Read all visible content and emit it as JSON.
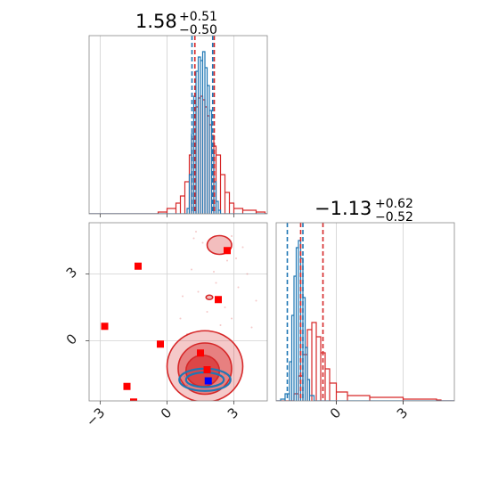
{
  "chart_data": {
    "type": "corner",
    "colors": {
      "blue": "#1f77b4",
      "red": "#d62728",
      "marker_red": "#ff0000",
      "marker_blue": "#0000ff"
    },
    "parameters": [
      {
        "index": 0,
        "title": {
          "median": "1.58",
          "plus": "+0.51",
          "minus": "−0.50"
        },
        "range": [
          -3.5,
          4.5
        ],
        "ticks": [
          -3,
          0,
          3
        ],
        "tick_labels": [
          "−3",
          "0",
          "3"
        ]
      },
      {
        "index": 1,
        "title": {
          "median": "−1.13",
          "plus": "+0.62",
          "minus": "−0.52"
        },
        "range": [
          -2.7,
          5.3
        ],
        "ticks": [
          0,
          3
        ],
        "tick_labels": [
          "0",
          "3"
        ]
      }
    ],
    "grid": true,
    "marginals": [
      {
        "param": 0,
        "blue_hist": [
          [
            0.9,
            0.03
          ],
          [
            1.0,
            0.22
          ],
          [
            1.1,
            0.45
          ],
          [
            1.2,
            0.66
          ],
          [
            1.3,
            0.8
          ],
          [
            1.4,
            0.88
          ],
          [
            1.5,
            0.86
          ],
          [
            1.6,
            0.91
          ],
          [
            1.7,
            0.82
          ],
          [
            1.8,
            0.72
          ],
          [
            1.9,
            0.58
          ],
          [
            2.0,
            0.36
          ],
          [
            2.1,
            0.18
          ],
          [
            2.2,
            0.07
          ],
          [
            2.3,
            0.02
          ]
        ],
        "red_hist": [
          [
            -0.4,
            0.01
          ],
          [
            0.0,
            0.03
          ],
          [
            0.4,
            0.06
          ],
          [
            0.6,
            0.1
          ],
          [
            0.8,
            0.18
          ],
          [
            1.0,
            0.33
          ],
          [
            1.1,
            0.42
          ],
          [
            1.2,
            0.5
          ],
          [
            1.3,
            0.6
          ],
          [
            1.4,
            0.65
          ],
          [
            1.5,
            0.66
          ],
          [
            1.6,
            0.64
          ],
          [
            1.7,
            0.6
          ],
          [
            1.8,
            0.55
          ],
          [
            1.9,
            0.5
          ],
          [
            2.0,
            0.44
          ],
          [
            2.1,
            0.38
          ],
          [
            2.2,
            0.33
          ],
          [
            2.4,
            0.22
          ],
          [
            2.6,
            0.12
          ],
          [
            2.8,
            0.06
          ],
          [
            3.0,
            0.03
          ],
          [
            3.4,
            0.02
          ],
          [
            4.0,
            0.01
          ]
        ],
        "blue_quantiles": [
          1.12,
          2.05
        ],
        "red_quantiles": [
          1.25,
          2.12
        ]
      },
      {
        "param": 1,
        "blue_hist": [
          [
            -2.5,
            0.01
          ],
          [
            -2.3,
            0.04
          ],
          [
            -2.1,
            0.22
          ],
          [
            -2.0,
            0.48
          ],
          [
            -1.9,
            0.7
          ],
          [
            -1.8,
            0.86
          ],
          [
            -1.7,
            0.9
          ],
          [
            -1.6,
            0.8
          ],
          [
            -1.5,
            0.58
          ],
          [
            -1.4,
            0.3
          ],
          [
            -1.3,
            0.12
          ],
          [
            -1.2,
            0.03
          ]
        ],
        "red_hist": [
          [
            -1.9,
            0.04
          ],
          [
            -1.7,
            0.14
          ],
          [
            -1.5,
            0.26
          ],
          [
            -1.3,
            0.4
          ],
          [
            -1.1,
            0.44
          ],
          [
            -0.9,
            0.36
          ],
          [
            -0.7,
            0.27
          ],
          [
            -0.5,
            0.18
          ],
          [
            -0.3,
            0.1
          ],
          [
            0.0,
            0.05
          ],
          [
            0.5,
            0.03
          ],
          [
            1.5,
            0.02
          ],
          [
            3.0,
            0.01
          ],
          [
            4.5,
            0.005
          ]
        ],
        "blue_quantiles": [
          -2.2,
          -1.5
        ],
        "red_quantiles": [
          -1.6,
          -0.6
        ]
      }
    ],
    "joint": {
      "x_param": 0,
      "y_param": 1,
      "red_contours": [
        {
          "cx": 1.7,
          "cy": -1.15,
          "rx": 1.7,
          "ry": 1.6,
          "opacity": 0.25
        },
        {
          "cx": 1.7,
          "cy": -1.25,
          "rx": 1.2,
          "ry": 1.15,
          "opacity": 0.45
        },
        {
          "cx": 1.6,
          "cy": -1.35,
          "rx": 0.75,
          "ry": 0.7,
          "opacity": 0.65
        },
        {
          "cx": 2.35,
          "cy": 4.3,
          "rx": 0.55,
          "ry": 0.42,
          "opacity": 0.3
        },
        {
          "cx": 1.9,
          "cy": 1.95,
          "rx": 0.15,
          "ry": 0.1,
          "opacity": 0.3
        }
      ],
      "blue_contours": [
        {
          "cx": 1.7,
          "cy": -1.75,
          "rx": 1.15,
          "ry": 0.5
        },
        {
          "cx": 1.7,
          "cy": -1.75,
          "rx": 0.85,
          "ry": 0.33
        }
      ],
      "scatter_red_faint": [
        [
          1.2,
          4.6
        ],
        [
          1.6,
          4.4
        ],
        [
          2.9,
          4.7
        ],
        [
          3.4,
          4.2
        ],
        [
          2.7,
          3.6
        ],
        [
          1.1,
          3.2
        ],
        [
          3.6,
          3.0
        ],
        [
          2.2,
          2.6
        ],
        [
          1.4,
          2.2
        ],
        [
          3.2,
          2.4
        ],
        [
          2.6,
          1.5
        ],
        [
          0.6,
          1.0
        ],
        [
          3.8,
          0.6
        ],
        [
          2.9,
          1.0
        ],
        [
          0.9,
          0.3
        ],
        [
          1.3,
          4.9
        ],
        [
          2.1,
          3.1
        ],
        [
          3.1,
          3.7
        ],
        [
          0.7,
          2.0
        ],
        [
          4.0,
          1.8
        ],
        [
          1.8,
          1.3
        ],
        [
          2.4,
          0.7
        ]
      ],
      "scatter_blue_faint": [
        [
          0.8,
          -1.6
        ],
        [
          0.9,
          -2.0
        ],
        [
          2.7,
          -1.9
        ],
        [
          2.6,
          -1.5
        ],
        [
          1.1,
          -2.2
        ],
        [
          2.3,
          -2.2
        ]
      ],
      "markers_red": [
        [
          -2.8,
          0.65
        ],
        [
          -1.3,
          3.35
        ],
        [
          -0.3,
          -0.15
        ],
        [
          -1.8,
          -2.05
        ],
        [
          -1.5,
          -2.75
        ],
        [
          1.5,
          -0.55
        ],
        [
          1.8,
          -1.3
        ],
        [
          2.3,
          1.85
        ],
        [
          2.7,
          4.05
        ]
      ],
      "markers_blue": [
        [
          1.85,
          -1.8
        ]
      ]
    }
  }
}
